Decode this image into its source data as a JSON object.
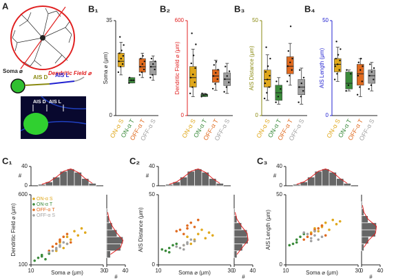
{
  "diagram": {
    "panel": "A",
    "dendritic_field": "Dendritic Field ⌀",
    "soma": "Soma ⌀",
    "ais_d": "AIS D",
    "ais_l": "AIS L",
    "image_ais_d": "AIS D",
    "image_ais_l": "AIS L"
  },
  "chart_data": [
    {
      "type": "box",
      "panel": "B₁",
      "ylabel": "Soma ⌀ (μm)",
      "axis_color": "#222222",
      "ylim": [
        0,
        35
      ],
      "yticks": [
        0,
        35
      ],
      "categories": [
        "ON-α S",
        "ON-α T",
        "OFF-α T",
        "OFF-α S"
      ],
      "boxes": [
        {
          "color": "#e0a81c",
          "min": 15,
          "q1": 18,
          "median": 20,
          "q3": 23,
          "max": 27,
          "points": [
            16,
            18,
            19,
            20,
            21,
            22,
            23,
            24,
            26,
            29
          ]
        },
        {
          "color": "#3a8a3a",
          "min": 12,
          "q1": 12,
          "median": 13,
          "q3": 14,
          "max": 14,
          "points": [
            12,
            13,
            13,
            14
          ]
        },
        {
          "color": "#e06a1e",
          "min": 14,
          "q1": 16,
          "median": 18,
          "q3": 21,
          "max": 23,
          "points": [
            15,
            16,
            17,
            18,
            19,
            20,
            21,
            22
          ]
        },
        {
          "color": "#a0a0a0",
          "min": 13,
          "q1": 15,
          "median": 18,
          "q3": 20,
          "max": 22,
          "points": [
            14,
            15,
            17,
            18,
            19,
            20,
            21
          ]
        }
      ]
    },
    {
      "type": "box",
      "panel": "B₂",
      "ylabel": "Dendritic Field ⌀ (μm)",
      "axis_color": "#e02020",
      "ylim": [
        0,
        600
      ],
      "yticks": [
        0,
        600
      ],
      "categories": [
        "ON-α S",
        "ON-α T",
        "OFF-α T",
        "OFF-α S"
      ],
      "boxes": [
        {
          "color": "#e0a81c",
          "min": 120,
          "q1": 180,
          "median": 240,
          "q3": 310,
          "max": 420,
          "points": [
            140,
            180,
            210,
            240,
            260,
            300,
            330,
            380,
            450,
            520
          ]
        },
        {
          "color": "#3a8a3a",
          "min": 120,
          "q1": 120,
          "median": 130,
          "q3": 135,
          "max": 140,
          "points": [
            120,
            130,
            135,
            140
          ]
        },
        {
          "color": "#e06a1e",
          "min": 160,
          "q1": 210,
          "median": 250,
          "q3": 290,
          "max": 350,
          "points": [
            170,
            200,
            230,
            250,
            270,
            290,
            320,
            340
          ]
        },
        {
          "color": "#a0a0a0",
          "min": 140,
          "q1": 190,
          "median": 230,
          "q3": 270,
          "max": 330,
          "points": [
            150,
            180,
            210,
            230,
            250,
            280,
            310
          ]
        }
      ]
    },
    {
      "type": "box",
      "panel": "B₃",
      "ylabel": "AIS Distance (μm)",
      "axis_color": "#8a8a10",
      "ylim": [
        0,
        50
      ],
      "yticks": [
        0,
        50
      ],
      "categories": [
        "ON-α S",
        "ON-α T",
        "OFF-α T",
        "OFF-α S"
      ],
      "boxes": [
        {
          "color": "#e0a81c",
          "min": 8,
          "q1": 15,
          "median": 19,
          "q3": 24,
          "max": 32,
          "points": [
            9,
            12,
            15,
            17,
            19,
            21,
            23,
            26,
            30,
            36
          ]
        },
        {
          "color": "#3a8a3a",
          "min": 6,
          "q1": 8,
          "median": 12,
          "q3": 16,
          "max": 20,
          "points": [
            7,
            10,
            14,
            18
          ]
        },
        {
          "color": "#e06a1e",
          "min": 16,
          "q1": 22,
          "median": 26,
          "q3": 31,
          "max": 38,
          "points": [
            18,
            21,
            24,
            26,
            28,
            30,
            34,
            47
          ]
        },
        {
          "color": "#a0a0a0",
          "min": 6,
          "q1": 11,
          "median": 15,
          "q3": 19,
          "max": 25,
          "points": [
            7,
            10,
            13,
            15,
            17,
            20,
            24
          ]
        }
      ]
    },
    {
      "type": "box",
      "panel": "B₄",
      "ylabel": "AIS Length (μm)",
      "axis_color": "#2020d0",
      "ylim": [
        0,
        50
      ],
      "yticks": [
        0,
        50
      ],
      "categories": [
        "ON-α S",
        "ON-α T",
        "OFF-α T",
        "OFF-α S"
      ],
      "boxes": [
        {
          "color": "#e0a81c",
          "min": 18,
          "q1": 23,
          "median": 27,
          "q3": 30,
          "max": 36,
          "points": [
            19,
            22,
            24,
            26,
            27,
            29,
            30,
            32,
            35,
            39
          ]
        },
        {
          "color": "#3a8a3a",
          "min": 13,
          "q1": 14,
          "median": 17,
          "q3": 23,
          "max": 24,
          "points": [
            13,
            16,
            22,
            24
          ]
        },
        {
          "color": "#e06a1e",
          "min": 10,
          "q1": 16,
          "median": 22,
          "q3": 27,
          "max": 30,
          "points": [
            11,
            15,
            18,
            21,
            24,
            26,
            28,
            30
          ]
        },
        {
          "color": "#a0a0a0",
          "min": 13,
          "q1": 17,
          "median": 21,
          "q3": 24,
          "max": 28,
          "points": [
            14,
            16,
            19,
            21,
            23,
            25,
            27
          ]
        }
      ]
    },
    {
      "type": "scatter",
      "panel": "C₁",
      "xlabel": "Soma ⌀ (μm)",
      "ylabel": "Dendritic Field ⌀ (μm)",
      "legend": true,
      "xlim": [
        10,
        30
      ],
      "xticks": [
        10,
        30
      ],
      "ylim": [
        100,
        600
      ],
      "yticks": [
        100,
        600
      ],
      "series": [
        {
          "name": "ON-α S",
          "color": "#e0a81c",
          "x": [
            18,
            20,
            21,
            22,
            19,
            23,
            24,
            20,
            25,
            17
          ],
          "values": [
            260,
            300,
            280,
            340,
            220,
            310,
            360,
            250,
            330,
            200
          ]
        },
        {
          "name": "ON-α T",
          "color": "#3a8a3a",
          "x": [
            12,
            13,
            14,
            13,
            11,
            15
          ],
          "values": [
            150,
            170,
            140,
            160,
            130,
            180
          ]
        },
        {
          "name": "OFF-α T",
          "color": "#e06a1e",
          "x": [
            16,
            18,
            17,
            19,
            15,
            20,
            21,
            18
          ],
          "values": [
            230,
            270,
            250,
            300,
            200,
            320,
            260,
            280
          ]
        },
        {
          "name": "OFF-α S",
          "color": "#a0a0a0",
          "x": [
            17,
            18,
            16,
            19,
            15,
            20,
            18,
            17
          ],
          "values": [
            220,
            240,
            200,
            260,
            190,
            250,
            230,
            210
          ]
        }
      ],
      "top_hist": {
        "label": "#",
        "bins": [
          12,
          14,
          16,
          18,
          20,
          22,
          24,
          26,
          28
        ],
        "counts": [
          3,
          8,
          18,
          30,
          35,
          28,
          15,
          5
        ],
        "ylim": [
          0,
          40
        ],
        "yticks": [
          0,
          40
        ]
      },
      "right_hist": {
        "label": "#",
        "bins": [
          150,
          200,
          250,
          300,
          350,
          400,
          450,
          500
        ],
        "counts": [
          8,
          30,
          35,
          22,
          12,
          5,
          2
        ],
        "xlim": [
          0,
          40
        ],
        "xticks": [
          0,
          40
        ]
      }
    },
    {
      "type": "scatter",
      "panel": "C₂",
      "xlabel": "Soma ⌀ (μm)",
      "ylabel": "AIS Distance (μm)",
      "legend": false,
      "xlim": [
        10,
        30
      ],
      "xticks": [
        10,
        30
      ],
      "ylim": [
        0,
        50
      ],
      "yticks": [
        0,
        50
      ],
      "series": [
        {
          "name": "ON-α S",
          "color": "#e0a81c",
          "x": [
            18,
            20,
            21,
            22,
            19,
            23,
            24,
            20,
            25,
            17
          ],
          "values": [
            20,
            18,
            22,
            25,
            15,
            19,
            23,
            17,
            21,
            14
          ]
        },
        {
          "name": "ON-α T",
          "color": "#3a8a3a",
          "x": [
            12,
            13,
            14,
            13,
            11,
            15
          ],
          "values": [
            10,
            12,
            14,
            9,
            11,
            15
          ]
        },
        {
          "name": "OFF-α T",
          "color": "#e06a1e",
          "x": [
            16,
            18,
            17,
            19,
            15,
            20,
            21,
            18
          ],
          "values": [
            25,
            28,
            22,
            30,
            24,
            27,
            32,
            26
          ]
        },
        {
          "name": "OFF-α S",
          "color": "#a0a0a0",
          "x": [
            17,
            18,
            16,
            19,
            15,
            20,
            18,
            17
          ],
          "values": [
            14,
            16,
            12,
            18,
            13,
            17,
            15,
            11
          ]
        }
      ],
      "top_hist": {
        "label": "#",
        "bins": [
          12,
          14,
          16,
          18,
          20,
          22,
          24,
          26,
          28
        ],
        "counts": [
          3,
          8,
          18,
          30,
          35,
          28,
          15,
          5
        ],
        "ylim": [
          0,
          40
        ],
        "yticks": [
          0,
          40
        ]
      },
      "right_hist": {
        "label": "#",
        "bins": [
          5,
          10,
          15,
          20,
          25,
          30,
          35,
          40
        ],
        "counts": [
          6,
          18,
          30,
          28,
          16,
          6,
          2
        ],
        "xlim": [
          0,
          40
        ],
        "xticks": [
          0,
          40
        ]
      }
    },
    {
      "type": "scatter",
      "panel": "C₃",
      "xlabel": "Soma ⌀ (μm)",
      "ylabel": "AIS Length (μm)",
      "legend": false,
      "xlim": [
        10,
        30
      ],
      "xticks": [
        10,
        30
      ],
      "ylim": [
        0,
        50
      ],
      "yticks": [
        0,
        50
      ],
      "series": [
        {
          "name": "ON-α S",
          "color": "#e0a81c",
          "x": [
            18,
            20,
            21,
            22,
            19,
            23,
            24,
            20,
            25,
            17
          ],
          "values": [
            26,
            28,
            30,
            25,
            24,
            32,
            29,
            27,
            31,
            23
          ]
        },
        {
          "name": "ON-α T",
          "color": "#3a8a3a",
          "x": [
            12,
            13,
            14,
            13,
            11,
            15
          ],
          "values": [
            15,
            18,
            20,
            16,
            14,
            22
          ]
        },
        {
          "name": "OFF-α T",
          "color": "#e06a1e",
          "x": [
            16,
            18,
            17,
            19,
            15,
            20,
            21,
            18
          ],
          "values": [
            20,
            24,
            22,
            26,
            18,
            28,
            21,
            25
          ]
        },
        {
          "name": "OFF-α S",
          "color": "#a0a0a0",
          "x": [
            17,
            18,
            16,
            19,
            15,
            20,
            18,
            17
          ],
          "values": [
            19,
            21,
            22,
            18,
            23,
            20,
            24,
            17
          ]
        }
      ],
      "top_hist": {
        "label": "#",
        "bins": [
          12,
          14,
          16,
          18,
          20,
          22,
          24,
          26,
          28
        ],
        "counts": [
          3,
          8,
          18,
          30,
          35,
          28,
          15,
          5
        ],
        "ylim": [
          0,
          40
        ],
        "yticks": [
          0,
          40
        ]
      },
      "right_hist": {
        "label": "#",
        "bins": [
          10,
          15,
          20,
          25,
          30,
          35,
          40,
          45
        ],
        "counts": [
          5,
          15,
          30,
          32,
          14,
          5,
          2
        ],
        "xlim": [
          0,
          40
        ],
        "xticks": [
          0,
          40
        ]
      }
    }
  ]
}
